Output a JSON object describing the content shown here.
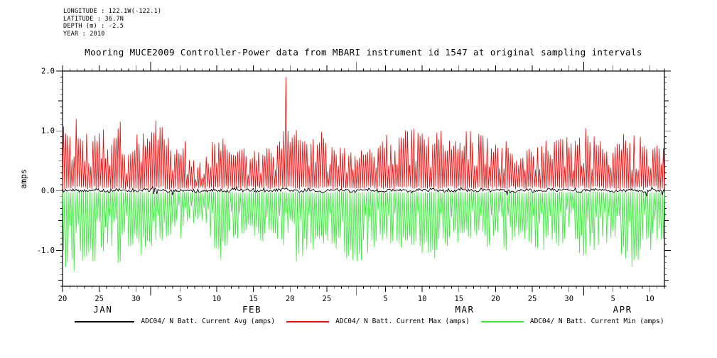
{
  "header": {
    "lines": [
      "LONGITUDE : 122.1W(-122.1)",
      "LATITUDE : 36.7N",
      "DEPTH (m) : -2.5",
      "YEAR : 2010"
    ]
  },
  "chart_data": {
    "type": "line",
    "title": "Mooring MUCE2009 Controller-Power data from MBARI instrument id 1547 at original sampling intervals",
    "ylabel": "amps",
    "ylim": [
      -1.6,
      2.0
    ],
    "yticks": [
      {
        "value": 2.0,
        "label": "2.0"
      },
      {
        "value": 1.0,
        "label": "1.0"
      },
      {
        "value": 0.0,
        "label": "0.0"
      },
      {
        "value": -1.0,
        "label": "-1.0"
      }
    ],
    "y_minor_step": 0.1,
    "x_axis": {
      "total_days": 82,
      "start": "Jan 20 2010",
      "end": "Apr 12 2010",
      "labeled_ticks": [
        {
          "day": 0,
          "label": "20"
        },
        {
          "day": 5,
          "label": "25"
        },
        {
          "day": 10,
          "label": "30"
        },
        {
          "day": 16,
          "label": "5"
        },
        {
          "day": 21,
          "label": "10"
        },
        {
          "day": 26,
          "label": "15"
        },
        {
          "day": 31,
          "label": "20"
        },
        {
          "day": 36,
          "label": "25"
        },
        {
          "day": 44,
          "label": "5"
        },
        {
          "day": 49,
          "label": "10"
        },
        {
          "day": 54,
          "label": "15"
        },
        {
          "day": 59,
          "label": "20"
        },
        {
          "day": 64,
          "label": "25"
        },
        {
          "day": 69,
          "label": "30"
        },
        {
          "day": 75,
          "label": "5"
        },
        {
          "day": 80,
          "label": "10"
        }
      ],
      "month_start_days": [
        12,
        40,
        71
      ],
      "month_labels": [
        {
          "day": 5.5,
          "label": "JAN"
        },
        {
          "day": 25.8,
          "label": "FEB"
        },
        {
          "day": 54.8,
          "label": "MAR"
        },
        {
          "day": 76.3,
          "label": "APR"
        }
      ]
    },
    "series": [
      {
        "name": "ADC04/ N Batt. Current Avg (amps)",
        "role": "avg",
        "color": "#000000",
        "noise_amplitude": 0.05,
        "daily_mean": [
          0.0,
          0.01,
          -0.01,
          0.0,
          0.02,
          0.0,
          -0.02,
          0.01,
          0.0,
          -0.01,
          0.0,
          0.01,
          0.02,
          0.0,
          -0.01,
          0.0,
          0.01,
          0.0,
          -0.02,
          0.0,
          0.01,
          0.0,
          -0.01,
          0.02,
          0.0,
          0.01,
          -0.01,
          0.0,
          0.0,
          0.01,
          0.03,
          0.0,
          -0.01,
          0.01,
          0.0,
          -0.02,
          0.0,
          0.01,
          0.0,
          -0.01,
          0.0,
          0.02,
          0.0,
          -0.01,
          0.01,
          0.0,
          0.0,
          -0.02,
          0.01,
          0.0,
          0.02,
          0.0,
          -0.01,
          0.0,
          0.01,
          0.0,
          -0.01,
          0.02,
          0.0,
          0.01,
          0.0,
          -0.02,
          0.0,
          0.01,
          -0.01,
          0.0,
          0.02,
          0.0,
          0.01,
          0.0,
          -0.01,
          0.0,
          0.02,
          0.01,
          0.0,
          -0.01,
          0.0,
          0.01,
          0.0,
          -0.02,
          0.01,
          0.0
        ]
      },
      {
        "name": "ADC04/ N Batt. Current Max (amps)",
        "role": "max",
        "color": "#ff0000",
        "baseline": 0.05,
        "daily_peak": [
          1.1,
          1.2,
          1.05,
          1.15,
          1.0,
          1.1,
          0.9,
          1.2,
          0.8,
          0.85,
          1.1,
          1.05,
          1.2,
          1.15,
          0.9,
          0.7,
          0.85,
          0.55,
          0.5,
          0.6,
          0.85,
          0.95,
          0.8,
          0.7,
          0.75,
          0.65,
          0.7,
          0.8,
          0.75,
          0.85,
          1.3,
          1.1,
          1.0,
          0.95,
          1.05,
          1.0,
          0.9,
          0.85,
          0.8,
          0.75,
          0.7,
          0.75,
          0.8,
          0.9,
          0.95,
          0.9,
          1.1,
          1.05,
          1.0,
          1.0,
          0.95,
          1.05,
          0.9,
          0.85,
          0.95,
          1.05,
          1.1,
          1.0,
          0.85,
          0.8,
          0.9,
          0.65,
          0.6,
          0.7,
          0.8,
          0.85,
          0.75,
          0.9,
          0.95,
          0.85,
          1.0,
          1.05,
          0.95,
          0.85,
          0.9,
          0.8,
          0.95,
          1.0,
          0.9,
          0.85,
          0.95,
          0.9
        ],
        "spikes": [
          {
            "day": 30.4,
            "value": 1.9
          }
        ]
      },
      {
        "name": "ADC04/ N Batt. Current Min (amps)",
        "role": "min",
        "color": "#33ee33",
        "baseline": -0.03,
        "daily_peak": [
          -1.3,
          -1.45,
          -1.25,
          -1.35,
          -1.2,
          -1.3,
          -1.0,
          -1.25,
          -0.9,
          -0.95,
          -1.1,
          -1.05,
          -1.15,
          -1.1,
          -0.85,
          -0.6,
          -0.8,
          -0.55,
          -0.5,
          -0.65,
          -1.0,
          -1.2,
          -0.95,
          -0.85,
          -0.9,
          -0.75,
          -0.8,
          -0.95,
          -0.85,
          -0.95,
          -1.0,
          -1.2,
          -1.1,
          -1.0,
          -1.05,
          -0.95,
          -0.9,
          -1.0,
          -1.25,
          -1.3,
          -1.2,
          -1.1,
          -1.0,
          -0.85,
          -0.9,
          -0.95,
          -1.05,
          -1.0,
          -0.95,
          -1.15,
          -1.25,
          -1.1,
          -0.95,
          -0.9,
          -0.85,
          -0.8,
          -0.9,
          -0.95,
          -1.0,
          -0.95,
          -1.05,
          -0.85,
          -0.8,
          -0.9,
          -1.05,
          -1.1,
          -1.0,
          -0.95,
          -0.9,
          -0.85,
          -1.05,
          -1.1,
          -1.0,
          -0.95,
          -1.0,
          -0.9,
          -1.2,
          -1.4,
          -1.25,
          -0.95,
          -1.0,
          -0.9
        ]
      }
    ]
  }
}
